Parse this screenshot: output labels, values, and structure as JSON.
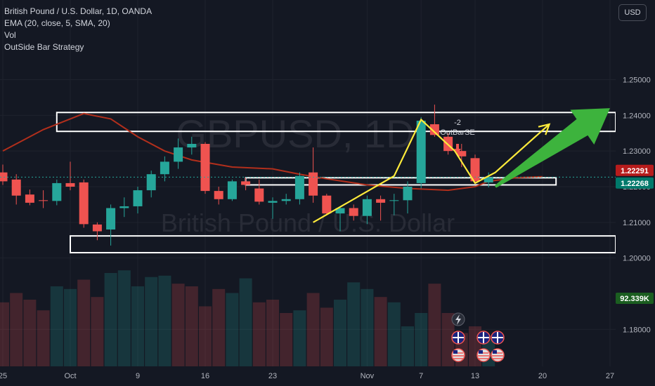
{
  "legend": {
    "symbol": "British Pound / U.S. Dollar, 1D, OANDA",
    "ema": "EMA (20, close, 5, SMA, 20)",
    "vol": "Vol",
    "strategy": "OutSide Bar Strategy"
  },
  "currency_button": "USD",
  "watermark": {
    "symbol": "GBPUSD, 1D",
    "description": "British Pound / U.S. Dollar"
  },
  "colors": {
    "background": "#141823",
    "up": "#26a69a",
    "down": "#ef5350",
    "ema": "#b22f1c",
    "annotation_yellow": "#ffeb3b",
    "annotation_green": "#3db33d",
    "zone_border": "#ffffff",
    "price_badge_red": "#b71c1c",
    "price_badge_teal": "#00796b",
    "vol_badge": "#1b5e20"
  },
  "chart_data": {
    "type": "candlestick",
    "title": "British Pound / U.S. Dollar, 1D, OANDA",
    "y_axis": {
      "range": [
        1.172,
        1.268
      ],
      "ticks": [
        {
          "value": 1.25,
          "label": "1.25000"
        },
        {
          "value": 1.24,
          "label": "1.24000"
        },
        {
          "value": 1.23,
          "label": "1.23000"
        },
        {
          "value": 1.22,
          "label": "1.22000"
        },
        {
          "value": 1.21,
          "label": "1.21000"
        },
        {
          "value": 1.2,
          "label": "1.20000"
        },
        {
          "value": 1.18,
          "label": "1.18000"
        }
      ]
    },
    "x_axis": {
      "ticks": [
        {
          "index": 0,
          "label": "25"
        },
        {
          "index": 5,
          "label": "Oct"
        },
        {
          "index": 10,
          "label": "9"
        },
        {
          "index": 15,
          "label": "16"
        },
        {
          "index": 20,
          "label": "23"
        },
        {
          "index": 27,
          "label": "Nov"
        },
        {
          "index": 31,
          "label": "7"
        },
        {
          "index": 35,
          "label": "13"
        },
        {
          "index": 40,
          "label": "20"
        },
        {
          "index": 45,
          "label": "27"
        }
      ]
    },
    "price_labels": [
      {
        "value": 1.22291,
        "label": "1.22291",
        "color": "#b71c1c"
      },
      {
        "value": 1.22268,
        "label": "1.22268",
        "color": "#00796b"
      }
    ],
    "volume_label": "92.339K",
    "candles": [
      {
        "o": 1.224,
        "h": 1.2262,
        "l": 1.2205,
        "c": 1.2215
      },
      {
        "o": 1.222,
        "h": 1.2235,
        "l": 1.215,
        "c": 1.2175
      },
      {
        "o": 1.2178,
        "h": 1.2192,
        "l": 1.2148,
        "c": 1.2155
      },
      {
        "o": 1.2162,
        "h": 1.219,
        "l": 1.214,
        "c": 1.216
      },
      {
        "o": 1.216,
        "h": 1.222,
        "l": 1.2148,
        "c": 1.221
      },
      {
        "o": 1.221,
        "h": 1.227,
        "l": 1.219,
        "c": 1.22
      },
      {
        "o": 1.2212,
        "h": 1.222,
        "l": 1.2085,
        "c": 1.2095
      },
      {
        "o": 1.2094,
        "h": 1.21,
        "l": 1.205,
        "c": 1.2075
      },
      {
        "o": 1.208,
        "h": 1.215,
        "l": 1.2035,
        "c": 1.214
      },
      {
        "o": 1.214,
        "h": 1.217,
        "l": 1.2115,
        "c": 1.2145
      },
      {
        "o": 1.2145,
        "h": 1.22,
        "l": 1.2125,
        "c": 1.219
      },
      {
        "o": 1.219,
        "h": 1.2245,
        "l": 1.217,
        "c": 1.2235
      },
      {
        "o": 1.2235,
        "h": 1.2285,
        "l": 1.2215,
        "c": 1.227
      },
      {
        "o": 1.227,
        "h": 1.2335,
        "l": 1.225,
        "c": 1.231
      },
      {
        "o": 1.231,
        "h": 1.234,
        "l": 1.229,
        "c": 1.232
      },
      {
        "o": 1.232,
        "h": 1.2325,
        "l": 1.218,
        "c": 1.2188
      },
      {
        "o": 1.2188,
        "h": 1.22,
        "l": 1.215,
        "c": 1.2165
      },
      {
        "o": 1.2165,
        "h": 1.222,
        "l": 1.216,
        "c": 1.2215
      },
      {
        "o": 1.2215,
        "h": 1.2225,
        "l": 1.219,
        "c": 1.2205
      },
      {
        "o": 1.2195,
        "h": 1.222,
        "l": 1.215,
        "c": 1.2158
      },
      {
        "o": 1.2155,
        "h": 1.217,
        "l": 1.211,
        "c": 1.216
      },
      {
        "o": 1.216,
        "h": 1.218,
        "l": 1.215,
        "c": 1.2165
      },
      {
        "o": 1.2165,
        "h": 1.224,
        "l": 1.215,
        "c": 1.223
      },
      {
        "o": 1.224,
        "h": 1.231,
        "l": 1.2155,
        "c": 1.2175
      },
      {
        "o": 1.2175,
        "h": 1.218,
        "l": 1.212,
        "c": 1.2125
      },
      {
        "o": 1.2125,
        "h": 1.2145,
        "l": 1.2075,
        "c": 1.214
      },
      {
        "o": 1.214,
        "h": 1.215,
        "l": 1.2105,
        "c": 1.2118
      },
      {
        "o": 1.2118,
        "h": 1.2175,
        "l": 1.2095,
        "c": 1.2165
      },
      {
        "o": 1.2165,
        "h": 1.2175,
        "l": 1.2105,
        "c": 1.2155
      },
      {
        "o": 1.216,
        "h": 1.218,
        "l": 1.212,
        "c": 1.2162
      },
      {
        "o": 1.2162,
        "h": 1.2215,
        "l": 1.2125,
        "c": 1.22
      },
      {
        "o": 1.221,
        "h": 1.2395,
        "l": 1.2195,
        "c": 1.2385
      },
      {
        "o": 1.2375,
        "h": 1.243,
        "l": 1.234,
        "c": 1.2345
      },
      {
        "o": 1.234,
        "h": 1.235,
        "l": 1.229,
        "c": 1.23
      },
      {
        "o": 1.23,
        "h": 1.232,
        "l": 1.2255,
        "c": 1.2285
      },
      {
        "o": 1.228,
        "h": 1.229,
        "l": 1.2208,
        "c": 1.2215
      },
      {
        "o": 1.2212,
        "h": 1.224,
        "l": 1.2198,
        "c": 1.2226
      }
    ],
    "ema_line": [
      [
        0,
        1.23
      ],
      [
        3,
        1.236
      ],
      [
        6,
        1.2405
      ],
      [
        8,
        1.239
      ],
      [
        10,
        1.234
      ],
      [
        12,
        1.23
      ],
      [
        14,
        1.2275
      ],
      [
        17,
        1.2255
      ],
      [
        20,
        1.225
      ],
      [
        22,
        1.2235
      ],
      [
        24,
        1.2222
      ],
      [
        27,
        1.2205
      ],
      [
        30,
        1.2195
      ],
      [
        33,
        1.219
      ],
      [
        35,
        1.22
      ],
      [
        36,
        1.2215
      ],
      [
        38,
        1.2225
      ],
      [
        40,
        1.2228
      ]
    ],
    "volume_bars": [
      {
        "v": 0.48,
        "up": false
      },
      {
        "v": 0.55,
        "up": false
      },
      {
        "v": 0.5,
        "up": false
      },
      {
        "v": 0.42,
        "up": false
      },
      {
        "v": 0.6,
        "up": true
      },
      {
        "v": 0.58,
        "up": true
      },
      {
        "v": 0.65,
        "up": false
      },
      {
        "v": 0.52,
        "up": false
      },
      {
        "v": 0.7,
        "up": true
      },
      {
        "v": 0.72,
        "up": true
      },
      {
        "v": 0.6,
        "up": true
      },
      {
        "v": 0.67,
        "up": true
      },
      {
        "v": 0.68,
        "up": true
      },
      {
        "v": 0.62,
        "up": false
      },
      {
        "v": 0.6,
        "up": false
      },
      {
        "v": 0.45,
        "up": false
      },
      {
        "v": 0.58,
        "up": false
      },
      {
        "v": 0.55,
        "up": true
      },
      {
        "v": 0.66,
        "up": true
      },
      {
        "v": 0.48,
        "up": false
      },
      {
        "v": 0.5,
        "up": false
      },
      {
        "v": 0.4,
        "up": false
      },
      {
        "v": 0.42,
        "up": true
      },
      {
        "v": 0.55,
        "up": false
      },
      {
        "v": 0.44,
        "up": false
      },
      {
        "v": 0.5,
        "up": true
      },
      {
        "v": 0.63,
        "up": true
      },
      {
        "v": 0.58,
        "up": true
      },
      {
        "v": 0.52,
        "up": false
      },
      {
        "v": 0.48,
        "up": true
      },
      {
        "v": 0.3,
        "up": true
      },
      {
        "v": 0.4,
        "up": true
      },
      {
        "v": 0.62,
        "up": false
      },
      {
        "v": 0.4,
        "up": false
      },
      {
        "v": 0.25,
        "up": false
      },
      {
        "v": 0.3,
        "up": false
      },
      {
        "v": 0.2,
        "up": true
      }
    ],
    "zones": [
      {
        "x_start": 4,
        "y_high": 1.2408,
        "y_low": 1.2355
      },
      {
        "x_start": 18,
        "x_end": 41,
        "y_high": 1.2225,
        "y_low": 1.2205
      },
      {
        "x_start": 5,
        "y_high": 1.2062,
        "y_low": 1.2015
      }
    ],
    "annotations": {
      "outbar_value": "-2",
      "outbar_label": "OutBarSE"
    },
    "yellow_lines": [
      [
        [
          23,
          1.21
        ],
        [
          29,
          1.223
        ],
        [
          31,
          1.2388
        ],
        [
          33.5,
          1.23
        ],
        [
          35,
          1.221
        ],
        [
          36.5,
          1.224
        ],
        [
          40.5,
          1.2375
        ]
      ]
    ],
    "green_arrow": {
      "from": [
        36.5,
        1.22
      ],
      "to": [
        45,
        1.242
      ]
    }
  }
}
